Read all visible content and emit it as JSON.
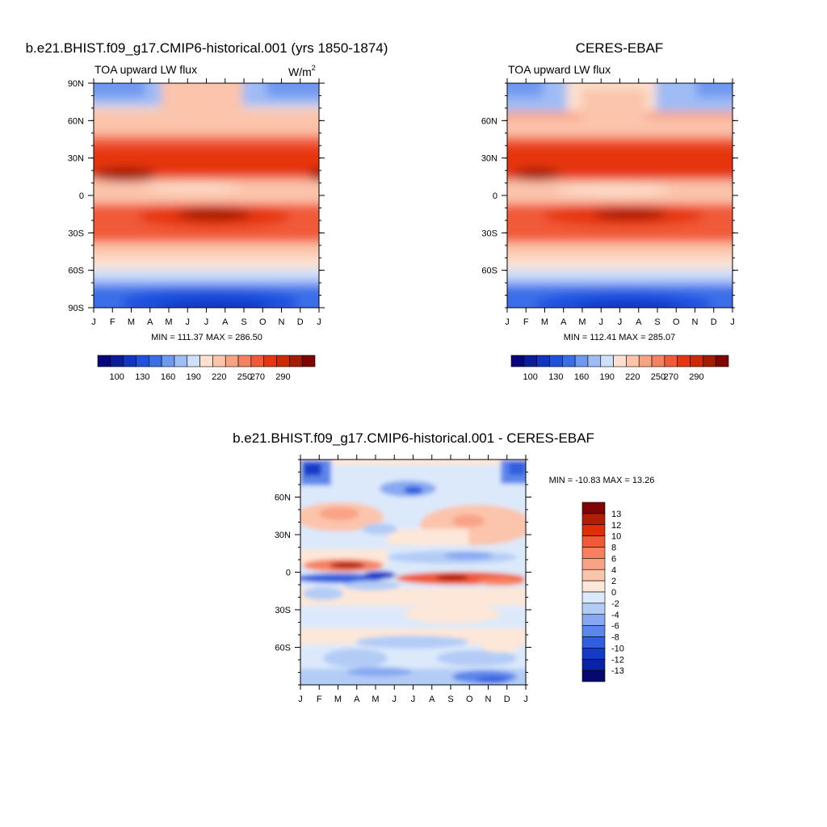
{
  "chart_data": [
    {
      "type": "heatmap",
      "title": "b.e21.BHIST.f09_g17.CMIP6-historical.001 (yrs 1850-1874)",
      "subtitle_left": "TOA upward LW flux",
      "units": "W/m",
      "units_sup": "2",
      "x_tick_labels": [
        "J",
        "F",
        "M",
        "A",
        "M",
        "J",
        "J",
        "A",
        "S",
        "O",
        "N",
        "D",
        "J"
      ],
      "y_ticks": [
        90,
        60,
        30,
        0,
        -30,
        -60,
        -90
      ],
      "y_tick_labels": [
        "90N",
        "60N",
        "30N",
        "0",
        "30S",
        "60S",
        "90S"
      ],
      "ylim": [
        -90,
        90
      ],
      "stats": "MIN = 111.37 MAX = 286.50",
      "colorbar": {
        "orientation": "horizontal",
        "labels": [
          "100",
          "130",
          "160",
          "190",
          "220",
          "250",
          "270",
          "290"
        ],
        "levels": [
          100,
          110,
          120,
          130,
          140,
          150,
          160,
          170,
          180,
          190,
          200,
          210,
          220,
          230,
          240,
          250,
          260,
          270,
          280,
          290
        ],
        "colors": [
          "#07057e",
          "#0a1d9a",
          "#1035c4",
          "#1f50df",
          "#3a6ee9",
          "#6f98f0",
          "#9fbcf5",
          "#cde1fb",
          "#fde0cf",
          "#fbc4ab",
          "#f9a385",
          "#f6805f",
          "#f15a38",
          "#e63510",
          "#cc2a04",
          "#a61b04",
          "#800404"
        ]
      }
    },
    {
      "type": "heatmap",
      "title": "CERES-EBAF",
      "subtitle_left": "TOA upward LW flux",
      "x_tick_labels": [
        "J",
        "F",
        "M",
        "A",
        "M",
        "J",
        "J",
        "A",
        "S",
        "O",
        "N",
        "D",
        "J"
      ],
      "y_ticks": [
        60,
        30,
        0,
        -30,
        -60
      ],
      "y_tick_labels": [
        "60N",
        "30N",
        "0",
        "30S",
        "60S"
      ],
      "ylim": [
        -90,
        90
      ],
      "stats": "MIN = 112.41 MAX = 285.07",
      "colorbar": {
        "orientation": "horizontal",
        "labels": [
          "100",
          "130",
          "160",
          "190",
          "220",
          "250",
          "270",
          "290"
        ]
      }
    },
    {
      "type": "heatmap",
      "title": "b.e21.BHIST.f09_g17.CMIP6-historical.001 - CERES-EBAF",
      "x_tick_labels": [
        "J",
        "F",
        "M",
        "A",
        "M",
        "J",
        "J",
        "A",
        "S",
        "O",
        "N",
        "D",
        "J"
      ],
      "y_ticks": [
        60,
        30,
        0,
        -30,
        -60
      ],
      "y_tick_labels": [
        "60N",
        "30N",
        "0",
        "30S",
        "60S"
      ],
      "ylim": [
        -90,
        90
      ],
      "stats": "MIN = -10.83 MAX =  13.26",
      "colorbar": {
        "orientation": "vertical",
        "labels": [
          "13",
          "12",
          "10",
          "8",
          "6",
          "4",
          "2",
          "0",
          "-2",
          "-4",
          "-6",
          "-8",
          "-10",
          "-12",
          "-13"
        ],
        "colors": [
          "#800404",
          "#b01e04",
          "#de2e06",
          "#f15a38",
          "#f6805f",
          "#f9a385",
          "#fbc4ab",
          "#fde7d8",
          "#dce9fb",
          "#b3ccf6",
          "#87a9f1",
          "#5b86ea",
          "#2f5fde",
          "#143bc8",
          "#0a22a6",
          "#05086f"
        ]
      }
    }
  ]
}
